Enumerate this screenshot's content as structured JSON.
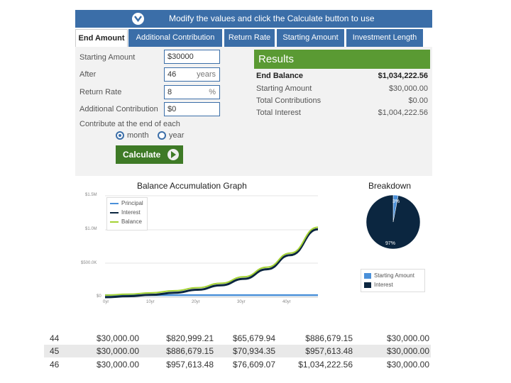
{
  "banner": {
    "text": "Modify the values and click the Calculate button to use"
  },
  "tabs": [
    {
      "label": "End Amount"
    },
    {
      "label": "Additional Contribution"
    },
    {
      "label": "Return Rate"
    },
    {
      "label": "Starting Amount"
    },
    {
      "label": "Investment Length"
    }
  ],
  "form": {
    "starting_amount": {
      "label": "Starting Amount",
      "value": "$30000"
    },
    "after": {
      "label": "After",
      "value": "46",
      "unit": "years"
    },
    "return_rate": {
      "label": "Return Rate",
      "value": "8",
      "unit": "%"
    },
    "additional": {
      "label": "Additional Contribution",
      "value": "$0"
    },
    "contribute_label": "Contribute at the end of each",
    "radio_month": "month",
    "radio_year": "year",
    "selected": "month",
    "calculate": "Calculate"
  },
  "results": {
    "title": "Results",
    "rows": [
      {
        "label": "End Balance",
        "value": "$1,034,222.56"
      },
      {
        "label": "Starting Amount",
        "value": "$30,000.00"
      },
      {
        "label": "Total Contributions",
        "value": "$0.00"
      },
      {
        "label": "Total Interest",
        "value": "$1,004,222.56"
      }
    ]
  },
  "graph": {
    "title": "Balance Accumulation Graph",
    "y_ticks": [
      "$1.5M",
      "$1.0M",
      "$500.0K",
      "$0"
    ],
    "x_ticks": [
      "0yr",
      "10yr",
      "20yr",
      "30yr",
      "40yr"
    ],
    "legend": [
      "Principal",
      "Interest",
      "Balance"
    ]
  },
  "breakdown": {
    "title": "Breakdown",
    "small_pct": "3%",
    "large_pct": "97%",
    "legend": [
      "Starting Amount",
      "Interest"
    ]
  },
  "chart_data": [
    {
      "type": "line",
      "title": "Balance Accumulation Graph",
      "x": [
        0,
        5,
        10,
        15,
        20,
        25,
        30,
        35,
        40,
        46
      ],
      "series": [
        {
          "name": "Principal",
          "values": [
            30000,
            30000,
            30000,
            30000,
            30000,
            30000,
            30000,
            30000,
            30000,
            30000
          ]
        },
        {
          "name": "Interest",
          "values": [
            0,
            14080,
            34768,
            65165,
            109829,
            175454,
            271880,
            413560,
            621735,
            1004223
          ]
        },
        {
          "name": "Balance",
          "values": [
            30000,
            44080,
            64768,
            95165,
            139829,
            205454,
            301880,
            443560,
            651735,
            1034223
          ]
        }
      ],
      "xlim": [
        0,
        46
      ],
      "ylim": [
        0,
        1500000
      ]
    },
    {
      "type": "pie",
      "title": "Breakdown",
      "categories": [
        "Starting Amount",
        "Interest"
      ],
      "values": [
        3,
        97
      ]
    }
  ],
  "table": {
    "rows": [
      [
        "44",
        "$30,000.00",
        "$820,999.21",
        "$65,679.94",
        "$886,679.15",
        "$30,000.00"
      ],
      [
        "45",
        "$30,000.00",
        "$886,679.15",
        "$70,934.35",
        "$957,613.48",
        "$30,000.00"
      ],
      [
        "46",
        "$30,000.00",
        "$957,613.48",
        "$76,609.07",
        "$1,034,222.56",
        "$30,000.00"
      ]
    ]
  },
  "colors": {
    "blue": "#3b6ea8",
    "green": "#5a9a33",
    "principal": "#4a90d9",
    "interest": "#0b2640",
    "balance": "#a4d233"
  }
}
